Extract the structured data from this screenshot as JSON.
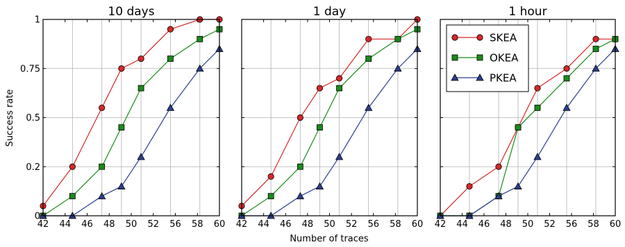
{
  "figure": {
    "xlabel": "Number of traces",
    "ylabel": "Success rate"
  },
  "colors": {
    "SKEA": "#d62728",
    "OKEA": "#1a8a1a",
    "PKEA": "#2b3f8f",
    "grid": "#b0b0b0"
  },
  "chart_data": [
    {
      "type": "line",
      "title": "10 days",
      "x": [
        42,
        45,
        48,
        50,
        52,
        55,
        58,
        60
      ],
      "xticks": [
        "42",
        "44",
        "46",
        "48",
        "50",
        "52",
        "56",
        "58",
        "60"
      ],
      "yticks": [
        "0",
        "0.2",
        "0.5",
        "0.75",
        "1"
      ],
      "ylim": [
        0,
        1
      ],
      "grid": true,
      "series": [
        {
          "name": "SKEA",
          "marker": "circle",
          "values": [
            0.05,
            0.25,
            0.55,
            0.75,
            0.8,
            0.95,
            1.0,
            1.0
          ]
        },
        {
          "name": "OKEA",
          "marker": "square",
          "values": [
            0.0,
            0.1,
            0.25,
            0.45,
            0.65,
            0.8,
            0.9,
            0.95
          ]
        },
        {
          "name": "PKEA",
          "marker": "triangle",
          "values": [
            0.0,
            0.0,
            0.1,
            0.15,
            0.3,
            0.55,
            0.75,
            0.85
          ]
        }
      ]
    },
    {
      "type": "line",
      "title": "1 day",
      "x": [
        42,
        45,
        48,
        50,
        52,
        55,
        58,
        60
      ],
      "xticks": [
        "42",
        "44",
        "46",
        "48",
        "50",
        "52",
        "56",
        "58",
        "60"
      ],
      "yticks": [],
      "ylim": [
        0,
        1
      ],
      "grid": true,
      "series": [
        {
          "name": "SKEA",
          "marker": "circle",
          "values": [
            0.05,
            0.2,
            0.5,
            0.65,
            0.7,
            0.9,
            0.9,
            1.0
          ]
        },
        {
          "name": "OKEA",
          "marker": "square",
          "values": [
            0.0,
            0.1,
            0.25,
            0.45,
            0.65,
            0.8,
            0.9,
            0.95
          ]
        },
        {
          "name": "PKEA",
          "marker": "triangle",
          "values": [
            0.0,
            0.0,
            0.1,
            0.15,
            0.3,
            0.55,
            0.75,
            0.85
          ]
        }
      ]
    },
    {
      "type": "line",
      "title": "1 hour",
      "x": [
        42,
        45,
        48,
        50,
        52,
        55,
        58,
        60
      ],
      "xticks": [
        "42",
        "44",
        "46",
        "48",
        "50",
        "52",
        "56",
        "58",
        "60"
      ],
      "yticks": [],
      "ylim": [
        0,
        1
      ],
      "grid": true,
      "legend": "top-left",
      "series": [
        {
          "name": "SKEA",
          "marker": "circle",
          "values": [
            0.0,
            0.15,
            0.25,
            0.45,
            0.65,
            0.75,
            0.9,
            0.9
          ]
        },
        {
          "name": "OKEA",
          "marker": "square",
          "values": [
            0.0,
            0.0,
            0.1,
            0.45,
            0.55,
            0.7,
            0.85,
            0.9
          ]
        },
        {
          "name": "PKEA",
          "marker": "triangle",
          "values": [
            0.0,
            0.0,
            0.1,
            0.15,
            0.3,
            0.55,
            0.75,
            0.85
          ]
        }
      ]
    }
  ]
}
